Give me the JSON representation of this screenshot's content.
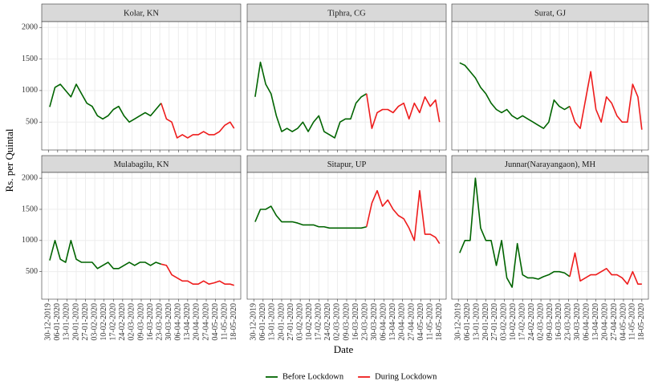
{
  "chart_data": {
    "type": "line",
    "xlabel": "Date",
    "ylabel": "Rs. per Quintal",
    "ylim": [
      58,
      2092
    ],
    "yticks": [
      500,
      1000,
      1500,
      2000
    ],
    "xlim": [
      "25-12-2019",
      "23-05-2020"
    ],
    "xticks": [
      "30-12-2019",
      "06-01-2020",
      "13-01-2020",
      "20-01-2020",
      "27-01-2020",
      "03-02-2020",
      "10-02-2020",
      "17-02-2020",
      "24-02-2020",
      "02-03-2020",
      "09-03-2020",
      "16-03-2020",
      "23-03-2020",
      "30-03-2020",
      "06-04-2020",
      "13-04-2020",
      "20-04-2020",
      "27-04-2020",
      "04-05-2020",
      "11-05-2020",
      "18-05-2020"
    ],
    "grid": true,
    "legend_position": "bottom",
    "series": [
      {
        "name": "Before Lockdown",
        "color": "#006400"
      },
      {
        "name": "During Lockdown",
        "color": "#ee1c1c"
      }
    ],
    "x": [
      "31-12-2019",
      "04-01-2020",
      "08-01-2020",
      "12-01-2020",
      "16-01-2020",
      "20-01-2020",
      "24-01-2020",
      "28-01-2020",
      "01-02-2020",
      "05-02-2020",
      "09-02-2020",
      "13-02-2020",
      "17-02-2020",
      "21-02-2020",
      "25-02-2020",
      "29-02-2020",
      "04-03-2020",
      "08-03-2020",
      "12-03-2020",
      "16-03-2020",
      "20-03-2020",
      "24-03-2020",
      "28-03-2020",
      "01-04-2020",
      "05-04-2020",
      "09-04-2020",
      "13-04-2020",
      "17-04-2020",
      "21-04-2020",
      "25-04-2020",
      "29-04-2020",
      "03-05-2020",
      "07-05-2020",
      "11-05-2020",
      "15-05-2020",
      "18-05-2020"
    ],
    "facets": [
      {
        "title": "Kolar, KN",
        "values": [
          [
            740,
            1050,
            1100,
            1000,
            900,
            1100,
            950,
            800,
            750,
            600,
            550,
            600,
            700,
            750,
            600,
            500,
            550,
            600,
            650,
            600,
            700,
            800,
            null,
            null,
            null,
            null,
            null,
            null,
            null,
            null,
            null,
            null,
            null,
            null,
            null,
            null
          ],
          [
            null,
            null,
            null,
            null,
            null,
            null,
            null,
            null,
            null,
            null,
            null,
            null,
            null,
            null,
            null,
            null,
            null,
            null,
            null,
            null,
            null,
            800,
            550,
            500,
            250,
            300,
            250,
            300,
            300,
            350,
            300,
            300,
            350,
            450,
            500,
            400
          ]
        ]
      },
      {
        "title": "Tiphra, CG",
        "values": [
          [
            900,
            1450,
            1100,
            950,
            600,
            350,
            400,
            350,
            400,
            500,
            350,
            500,
            600,
            350,
            300,
            250,
            500,
            550,
            550,
            800,
            900,
            950,
            null,
            null,
            null,
            null,
            null,
            null,
            null,
            null,
            null,
            null,
            null,
            null,
            null,
            null
          ],
          [
            null,
            null,
            null,
            null,
            null,
            null,
            null,
            null,
            null,
            null,
            null,
            null,
            null,
            null,
            null,
            null,
            null,
            null,
            null,
            null,
            null,
            950,
            400,
            650,
            700,
            700,
            650,
            750,
            800,
            550,
            800,
            650,
            900,
            750,
            850,
            500
          ]
        ]
      },
      {
        "title": "Surat, GJ",
        "values": [
          [
            1440,
            1400,
            1300,
            1200,
            1050,
            950,
            800,
            700,
            650,
            700,
            600,
            550,
            600,
            550,
            500,
            450,
            400,
            500,
            850,
            750,
            700,
            750,
            null,
            null,
            null,
            null,
            null,
            null,
            null,
            null,
            null,
            null,
            null,
            null,
            null,
            null
          ],
          [
            null,
            null,
            null,
            null,
            null,
            null,
            null,
            null,
            null,
            null,
            null,
            null,
            null,
            null,
            null,
            null,
            null,
            null,
            null,
            null,
            null,
            750,
            500,
            400,
            850,
            1300,
            700,
            500,
            900,
            800,
            600,
            500,
            500,
            1100,
            900,
            380
          ]
        ]
      },
      {
        "title": "Mulabagilu, KN",
        "values": [
          [
            680,
            1000,
            700,
            650,
            1000,
            700,
            650,
            650,
            650,
            550,
            600,
            650,
            550,
            550,
            600,
            650,
            600,
            650,
            650,
            600,
            650,
            620,
            null,
            null,
            null,
            null,
            null,
            null,
            null,
            null,
            null,
            null,
            null,
            null,
            null,
            null
          ],
          [
            null,
            null,
            null,
            null,
            null,
            null,
            null,
            null,
            null,
            null,
            null,
            null,
            null,
            null,
            null,
            null,
            null,
            null,
            null,
            null,
            null,
            620,
            600,
            450,
            400,
            350,
            350,
            300,
            300,
            350,
            300,
            320,
            350,
            300,
            300,
            280
          ]
        ]
      },
      {
        "title": "Sitapur, UP",
        "values": [
          [
            1300,
            1500,
            1500,
            1550,
            1400,
            1300,
            1300,
            1300,
            1280,
            1250,
            1250,
            1250,
            1220,
            1220,
            1200,
            1200,
            1200,
            1200,
            1200,
            1200,
            1200,
            1220,
            null,
            null,
            null,
            null,
            null,
            null,
            null,
            null,
            null,
            null,
            null,
            null,
            null,
            null
          ],
          [
            null,
            null,
            null,
            null,
            null,
            null,
            null,
            null,
            null,
            null,
            null,
            null,
            null,
            null,
            null,
            null,
            null,
            null,
            null,
            null,
            null,
            1220,
            1600,
            1800,
            1550,
            1650,
            1500,
            1400,
            1350,
            1200,
            1000,
            1800,
            1100,
            1100,
            1050,
            950
          ]
        ]
      },
      {
        "title": "Junnar(Narayangaon), MH",
        "values": [
          [
            800,
            1000,
            1000,
            2000,
            1200,
            1000,
            1000,
            600,
            1000,
            400,
            250,
            950,
            450,
            400,
            400,
            380,
            420,
            450,
            500,
            500,
            480,
            420,
            null,
            null,
            null,
            null,
            null,
            null,
            null,
            null,
            null,
            null,
            null,
            null,
            null,
            null
          ],
          [
            null,
            null,
            null,
            null,
            null,
            null,
            null,
            null,
            null,
            null,
            null,
            null,
            null,
            null,
            null,
            null,
            null,
            null,
            null,
            null,
            null,
            420,
            800,
            350,
            400,
            450,
            450,
            500,
            550,
            450,
            450,
            400,
            300,
            500,
            300,
            300
          ]
        ]
      }
    ]
  }
}
